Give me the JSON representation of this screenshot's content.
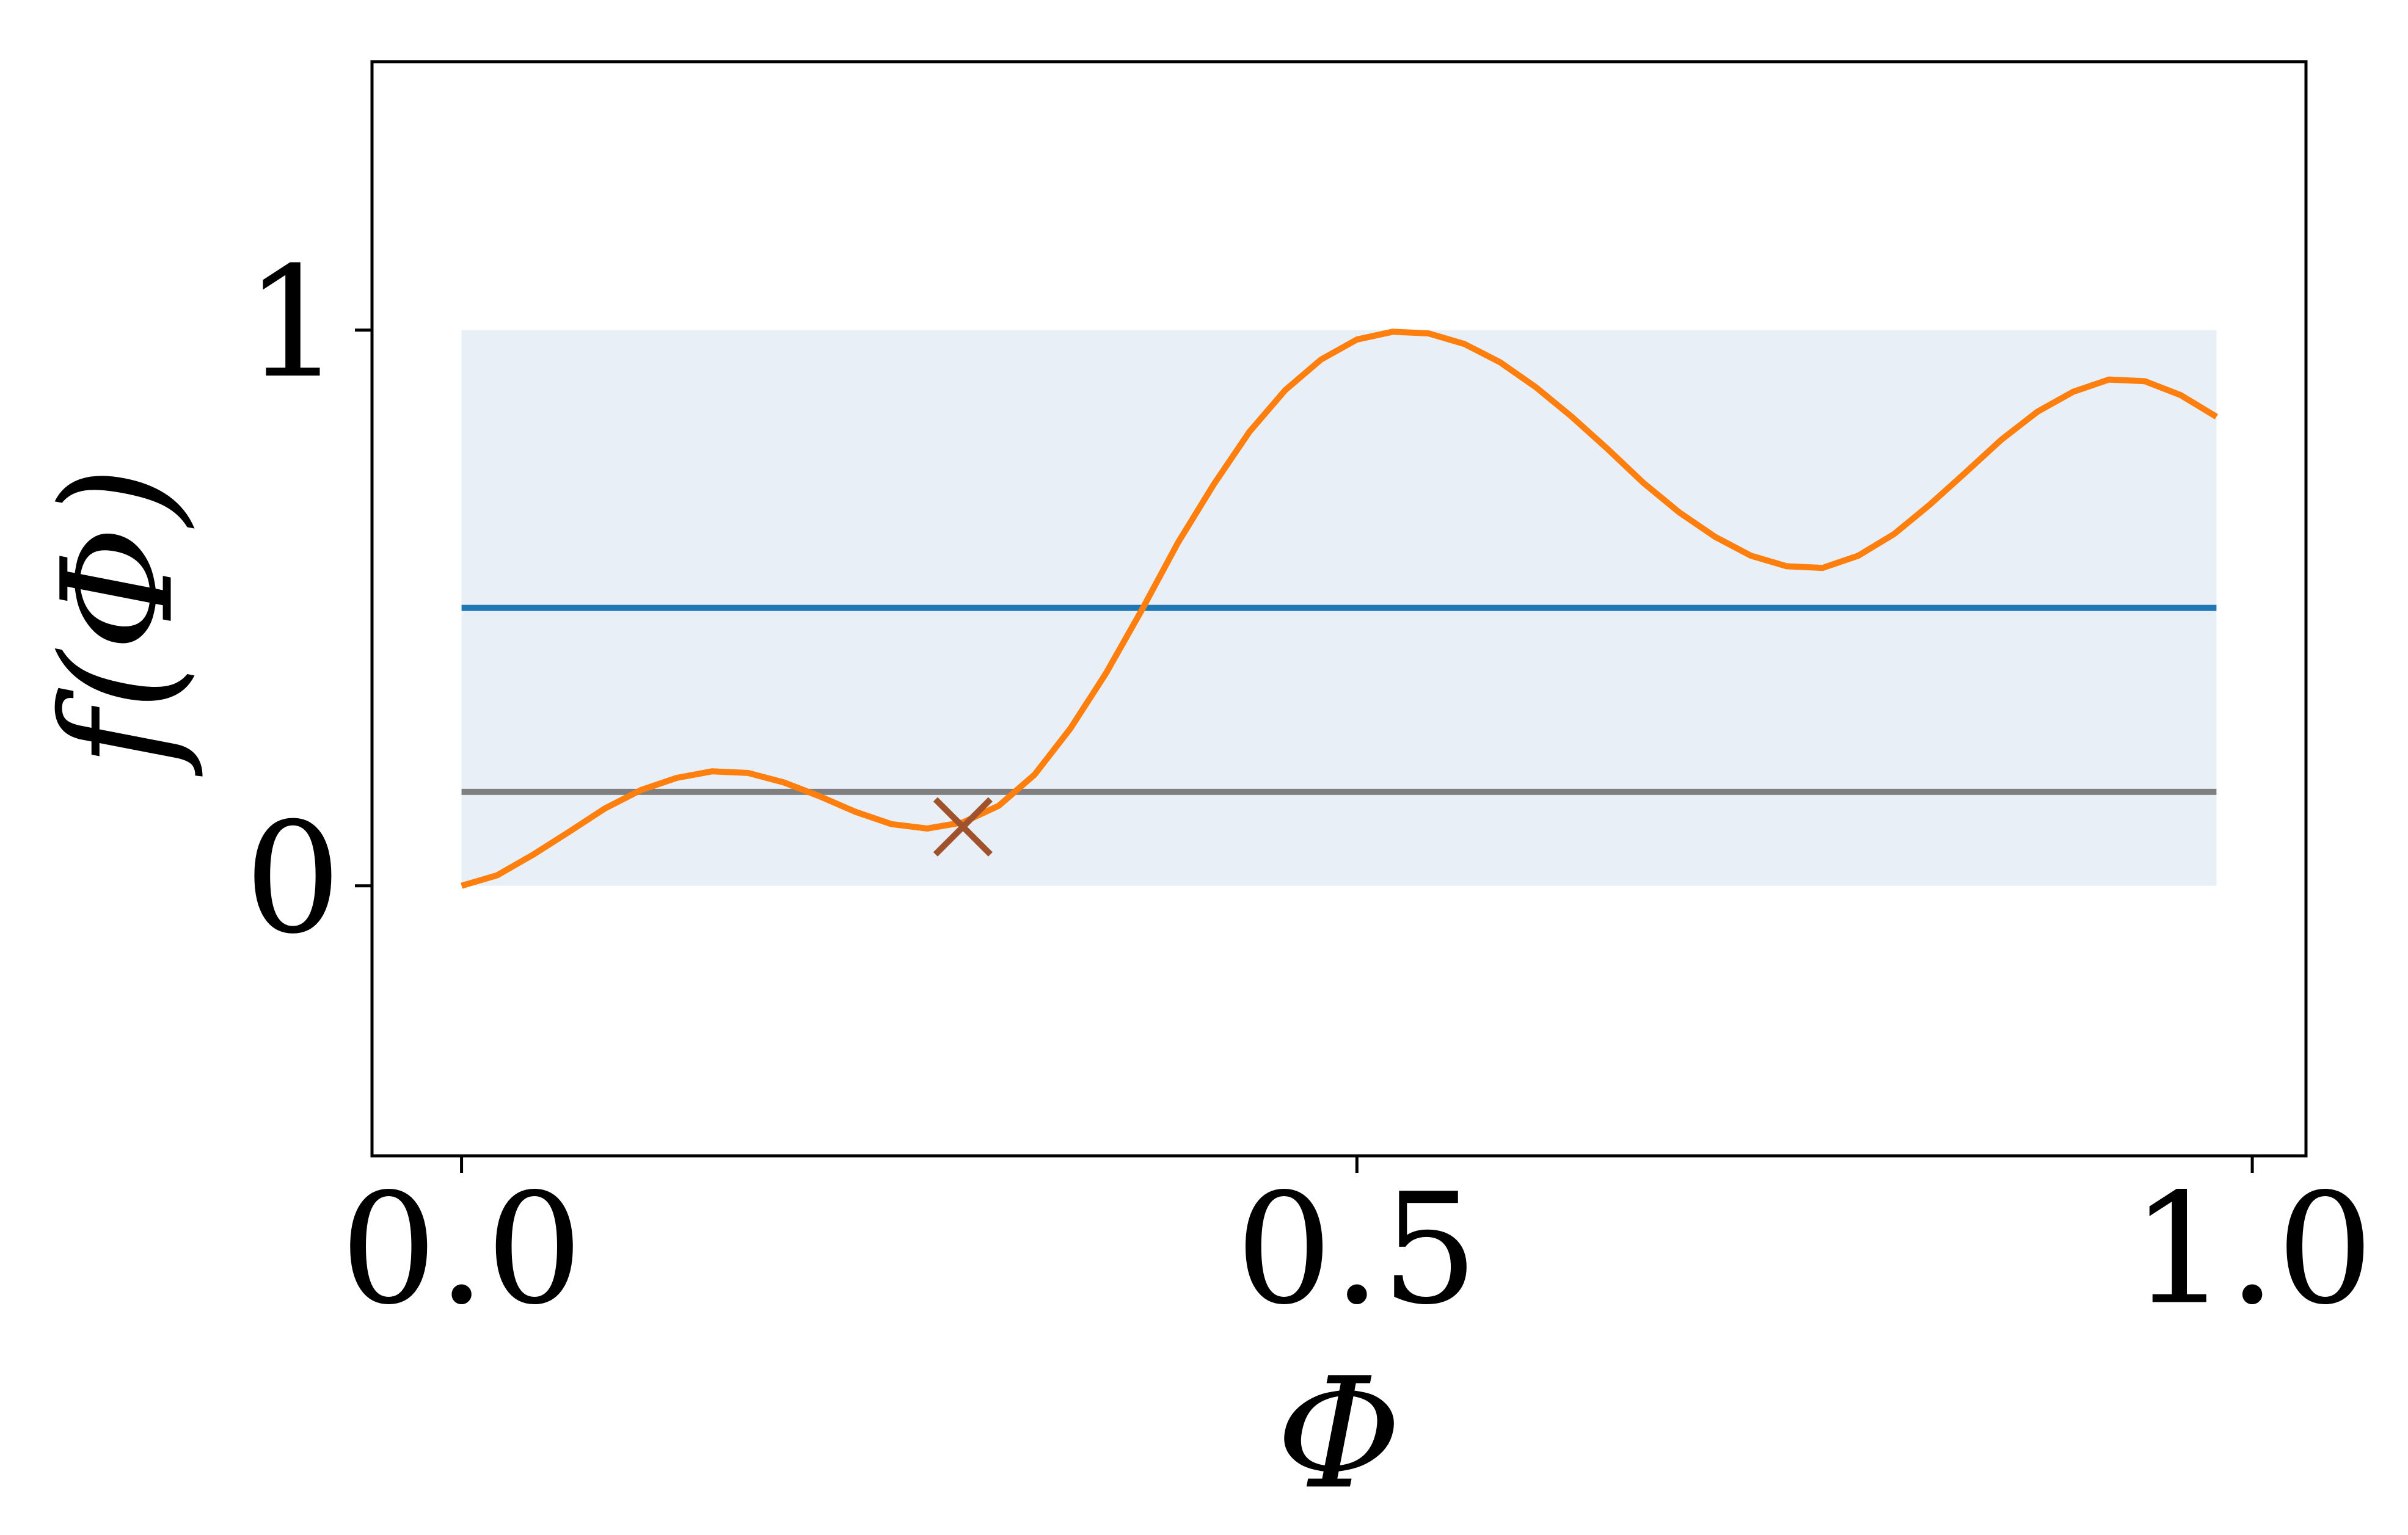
{
  "chart_data": {
    "type": "line",
    "x_label": "Φ",
    "y_label": "f(Φ)",
    "xlim": [
      -0.05,
      1.03
    ],
    "ylim": [
      -0.486,
      1.483
    ],
    "xticks": [
      {
        "value": 0,
        "label": "0.0"
      },
      0.5,
      {
        "value": 1,
        "label": "1.0"
      }
    ],
    "yticks": [
      0,
      1
    ],
    "grid": false,
    "band": {
      "x": [
        0,
        0.98
      ],
      "y": [
        0,
        1
      ],
      "color": "#e8eff6"
    },
    "hlines": [
      {
        "value": 0.5,
        "color": "#1f77b4"
      },
      {
        "value": 0.169,
        "color": "#7f7f7f"
      }
    ],
    "series": [
      {
        "color": "#ff7f0e",
        "x": [
          0,
          0.02,
          0.04,
          0.06,
          0.08,
          0.1,
          0.12,
          0.14,
          0.16,
          0.18,
          0.2,
          0.22,
          0.24,
          0.26,
          0.28,
          0.3,
          0.32,
          0.34,
          0.36,
          0.38,
          0.4,
          0.42,
          0.44,
          0.46,
          0.48,
          0.5,
          0.52,
          0.54,
          0.56,
          0.58,
          0.6,
          0.62,
          0.64,
          0.66,
          0.68,
          0.7,
          0.72,
          0.74,
          0.76,
          0.78,
          0.8,
          0.82,
          0.84,
          0.86,
          0.88,
          0.9,
          0.92,
          0.94,
          0.96,
          0.98
        ],
        "values": [
          0,
          0.019,
          0.056,
          0.097,
          0.139,
          0.172,
          0.194,
          0.206,
          0.203,
          0.186,
          0.161,
          0.133,
          0.111,
          0.103,
          0.114,
          0.144,
          0.2,
          0.283,
          0.383,
          0.497,
          0.617,
          0.722,
          0.817,
          0.892,
          0.947,
          0.983,
          0.997,
          0.994,
          0.975,
          0.942,
          0.897,
          0.844,
          0.786,
          0.725,
          0.672,
          0.628,
          0.594,
          0.575,
          0.572,
          0.594,
          0.633,
          0.686,
          0.744,
          0.803,
          0.853,
          0.889,
          0.911,
          0.908,
          0.883,
          0.844
        ]
      }
    ],
    "markers": [
      {
        "x": 0.28,
        "y": 0.106,
        "color": "#a0522d"
      }
    ]
  }
}
